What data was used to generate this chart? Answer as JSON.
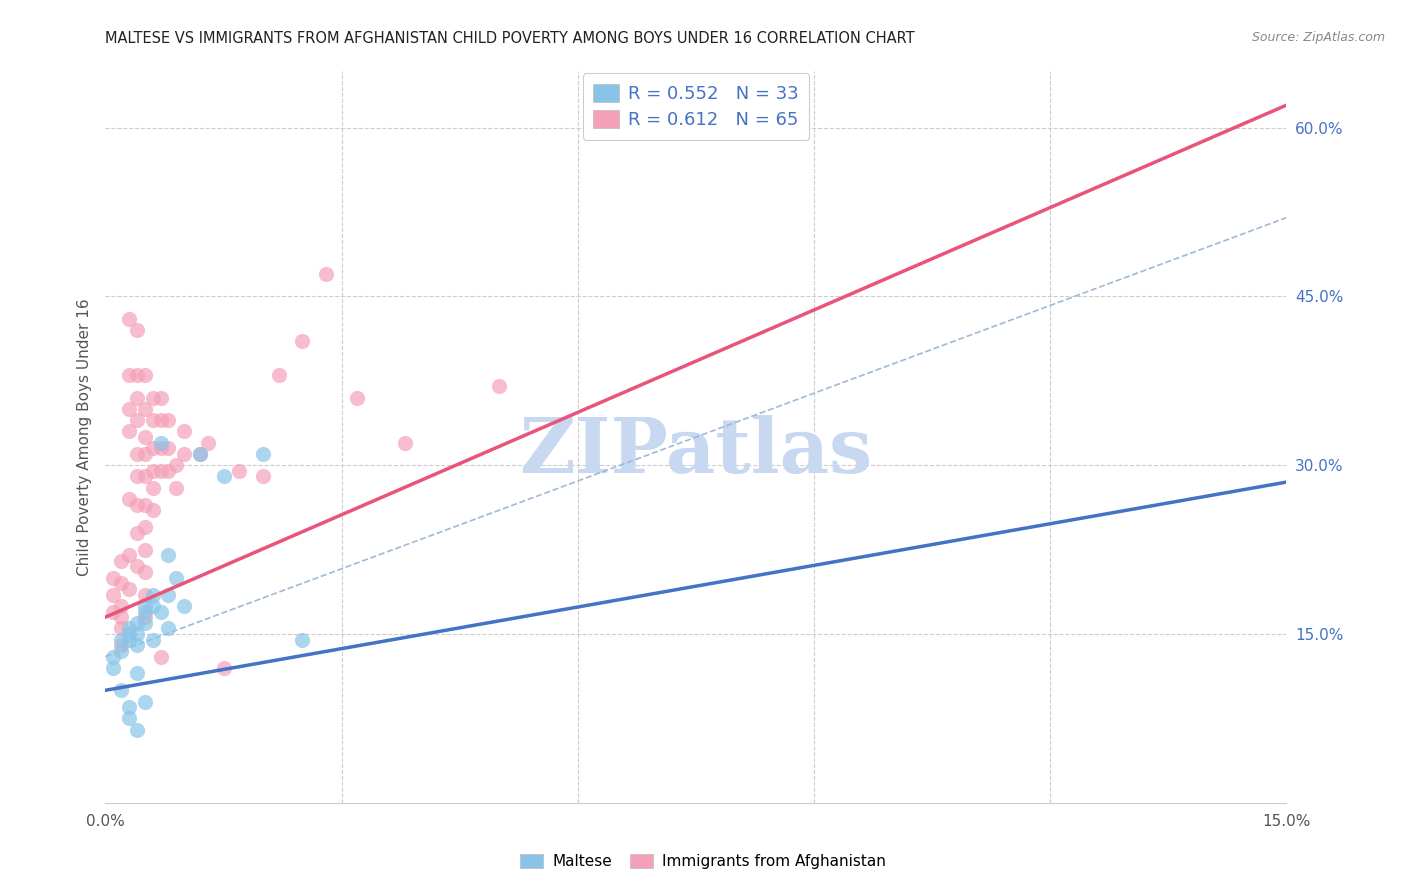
{
  "title": "MALTESE VS IMMIGRANTS FROM AFGHANISTAN CHILD POVERTY AMONG BOYS UNDER 16 CORRELATION CHART",
  "source": "Source: ZipAtlas.com",
  "ylabel": "Child Poverty Among Boys Under 16",
  "x_min": 0.0,
  "x_max": 0.15,
  "y_min": 0.0,
  "y_max": 0.65,
  "y_ticks_right": [
    0.15,
    0.3,
    0.45,
    0.6
  ],
  "y_tick_labels_right": [
    "15.0%",
    "30.0%",
    "45.0%",
    "60.0%"
  ],
  "legend_r1": "0.552",
  "legend_n1": "33",
  "legend_r2": "0.612",
  "legend_n2": "65",
  "maltese_color": "#89C4E8",
  "afghanistan_color": "#F4A0B8",
  "maltese_line_color": "#4472C4",
  "afghanistan_line_color": "#E8547A",
  "dashed_line_color": "#A0B8D8",
  "watermark": "ZIPatlas",
  "watermark_color": "#C8D8F0",
  "maltese_scatter_x": [
    0.001,
    0.001,
    0.002,
    0.002,
    0.002,
    0.003,
    0.003,
    0.003,
    0.003,
    0.003,
    0.004,
    0.004,
    0.004,
    0.004,
    0.004,
    0.005,
    0.005,
    0.005,
    0.005,
    0.006,
    0.006,
    0.006,
    0.007,
    0.007,
    0.008,
    0.008,
    0.008,
    0.009,
    0.01,
    0.012,
    0.015,
    0.02,
    0.025
  ],
  "maltese_scatter_y": [
    0.13,
    0.12,
    0.145,
    0.135,
    0.1,
    0.155,
    0.15,
    0.145,
    0.085,
    0.075,
    0.16,
    0.15,
    0.14,
    0.115,
    0.065,
    0.175,
    0.17,
    0.16,
    0.09,
    0.185,
    0.175,
    0.145,
    0.32,
    0.17,
    0.22,
    0.185,
    0.155,
    0.2,
    0.175,
    0.31,
    0.29,
    0.31,
    0.145
  ],
  "afghanistan_scatter_x": [
    0.001,
    0.001,
    0.001,
    0.002,
    0.002,
    0.002,
    0.002,
    0.002,
    0.002,
    0.003,
    0.003,
    0.003,
    0.003,
    0.003,
    0.003,
    0.003,
    0.004,
    0.004,
    0.004,
    0.004,
    0.004,
    0.004,
    0.004,
    0.004,
    0.004,
    0.005,
    0.005,
    0.005,
    0.005,
    0.005,
    0.005,
    0.005,
    0.005,
    0.005,
    0.005,
    0.005,
    0.006,
    0.006,
    0.006,
    0.006,
    0.006,
    0.006,
    0.007,
    0.007,
    0.007,
    0.007,
    0.007,
    0.008,
    0.008,
    0.008,
    0.009,
    0.009,
    0.01,
    0.01,
    0.012,
    0.013,
    0.015,
    0.017,
    0.02,
    0.022,
    0.025,
    0.028,
    0.032,
    0.038,
    0.05
  ],
  "afghanistan_scatter_y": [
    0.2,
    0.185,
    0.17,
    0.215,
    0.195,
    0.175,
    0.165,
    0.155,
    0.14,
    0.43,
    0.38,
    0.35,
    0.33,
    0.27,
    0.22,
    0.19,
    0.42,
    0.38,
    0.36,
    0.34,
    0.31,
    0.29,
    0.265,
    0.24,
    0.21,
    0.38,
    0.35,
    0.325,
    0.31,
    0.29,
    0.265,
    0.245,
    0.225,
    0.205,
    0.185,
    0.165,
    0.36,
    0.34,
    0.315,
    0.295,
    0.28,
    0.26,
    0.36,
    0.34,
    0.315,
    0.295,
    0.13,
    0.34,
    0.315,
    0.295,
    0.3,
    0.28,
    0.33,
    0.31,
    0.31,
    0.32,
    0.12,
    0.295,
    0.29,
    0.38,
    0.41,
    0.47,
    0.36,
    0.32,
    0.37
  ],
  "maltese_line_x": [
    0.0,
    0.15
  ],
  "maltese_line_y": [
    0.1,
    0.285
  ],
  "afghanistan_line_x": [
    0.0,
    0.15
  ],
  "afghanistan_line_y": [
    0.165,
    0.62
  ],
  "dashed_line_x": [
    0.0,
    0.15
  ],
  "dashed_line_y": [
    0.13,
    0.52
  ]
}
